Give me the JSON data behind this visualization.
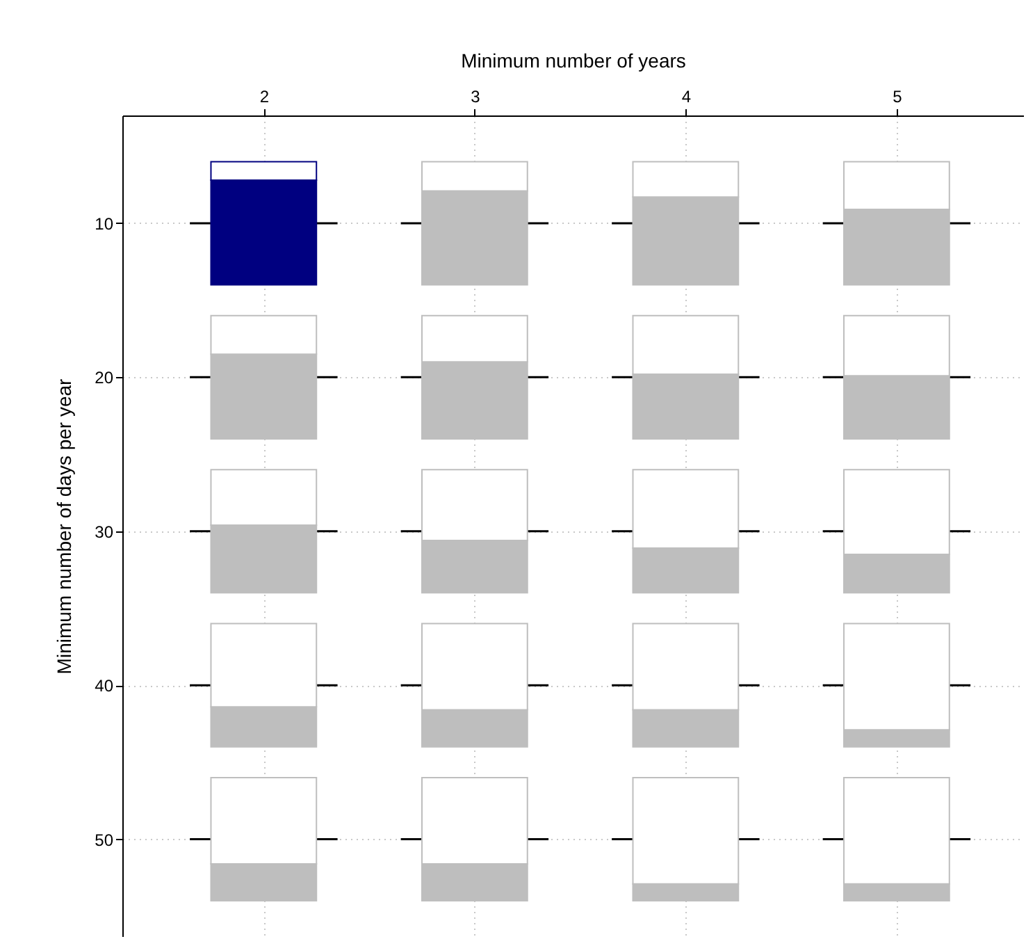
{
  "chart_data": {
    "type": "bar",
    "xlabel": "Minimum number of years",
    "ylabel": "Minimum number of days per year",
    "x": [
      2,
      3,
      4,
      5
    ],
    "series": [
      {
        "colors": [
          "#000080",
          "#bebebe",
          "#bebebe",
          "#bebebe"
        ],
        "base": [
          14,
          14,
          14,
          14
        ],
        "values": [
          -6.8,
          -6.1,
          -5.7,
          -4.9
        ]
      },
      {
        "color": "#ffffff",
        "base": [
          7.2,
          7.9,
          8.3,
          9.1
        ],
        "values": [
          -1.2,
          -1.9,
          -2.3,
          -3.1
        ]
      },
      {
        "color": "#bebebe",
        "base": [
          24,
          24,
          24,
          24
        ],
        "values": [
          -5.5,
          -5.0,
          -4.2,
          -4.1
        ]
      },
      {
        "color": "#ffffff",
        "base": [
          18.5,
          19.0,
          19.8,
          19.9
        ],
        "values": [
          -2.5,
          -3.0,
          -3.8,
          -3.9
        ]
      },
      {
        "color": "#bebebe",
        "base": [
          34,
          34,
          34,
          34
        ],
        "values": [
          -4.4,
          -3.4,
          -2.9,
          -2.5
        ]
      },
      {
        "color": "#ffffff",
        "base": [
          29.6,
          30.6,
          31.1,
          31.5
        ],
        "values": [
          -3.6,
          -4.6,
          -5.1,
          -5.5
        ]
      },
      {
        "color": "#bebebe",
        "base": [
          44,
          44,
          44,
          44
        ],
        "values": [
          -2.6,
          -2.4,
          -2.4,
          -1.1
        ]
      },
      {
        "color": "#ffffff",
        "base": [
          41.4,
          41.6,
          41.6,
          42.9
        ],
        "values": [
          -5.4,
          -5.6,
          -5.6,
          -6.9
        ]
      },
      {
        "color": "#bebebe",
        "base": [
          54,
          54,
          54,
          54
        ],
        "values": [
          -2.4,
          -2.4,
          -1.1,
          -1.1
        ]
      },
      {
        "color": "#ffffff",
        "base": [
          51.6,
          51.6,
          52.9,
          52.9
        ],
        "values": [
          -5.6,
          -5.6,
          -6.9,
          -6.9
        ]
      }
    ],
    "xlim": [
      1.33,
      5.6
    ],
    "xticks": [
      2,
      3,
      4,
      5
    ],
    "ylim": [
      56.3,
      3
    ],
    "yticks": [
      10,
      20,
      30,
      40,
      50
    ],
    "ref_lines": [
      {
        "axis": "y",
        "value": 10,
        "color": "#000000"
      },
      {
        "axis": "y",
        "value": 20,
        "color": "#000000"
      },
      {
        "axis": "y",
        "value": 30,
        "color": "#000000"
      },
      {
        "axis": "y",
        "value": 40,
        "color": "#000000"
      },
      {
        "axis": "y",
        "value": 50,
        "color": "#000000"
      }
    ],
    "grid": true
  }
}
